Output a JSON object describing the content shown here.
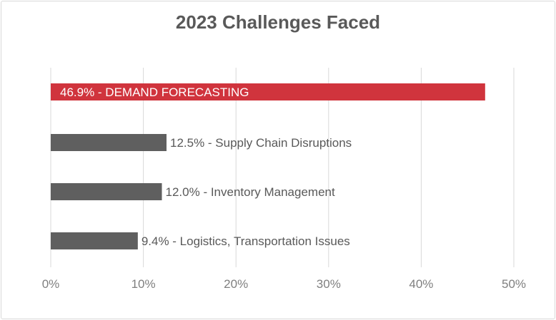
{
  "chart_data": {
    "type": "bar",
    "orientation": "horizontal",
    "title": "2023 Challenges Faced",
    "categories": [
      "DEMAND FORECASTING",
      "Supply Chain Disruptions",
      "Inventory Management",
      "Logistics, Transportation Issues"
    ],
    "values": [
      46.9,
      12.5,
      12.0,
      9.4
    ],
    "data_labels": [
      "46.9% - DEMAND FORECASTING",
      "12.5% -  Supply Chain Disruptions",
      "12.0% -  Inventory Management",
      "9.4% -  Logistics, Transportation Issues"
    ],
    "xlim": [
      0,
      50
    ],
    "x_ticks": [
      "0%",
      "10%",
      "20%",
      "30%",
      "40%",
      "50%"
    ],
    "xlabel": "",
    "ylabel": "",
    "grid": "vertical",
    "colors": {
      "highlight": "#D0343D",
      "default": "#5F5F5F",
      "grid": "#D9D9D9",
      "text": "#595959"
    }
  }
}
